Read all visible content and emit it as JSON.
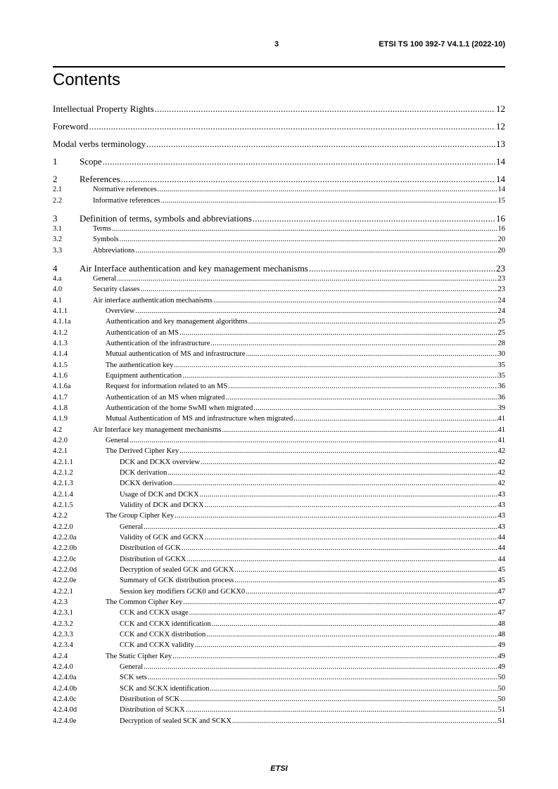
{
  "header": {
    "page_number": "3",
    "document_id": "ETSI TS 100 392-7 V4.1.1 (2022-10)"
  },
  "title": "Contents",
  "toc": [
    {
      "num": "",
      "title": "Intellectual Property Rights",
      "page": "12",
      "level": 0
    },
    {
      "num": "",
      "title": "Foreword",
      "page": "12",
      "level": 0
    },
    {
      "num": "",
      "title": "Modal verbs terminology",
      "page": "13",
      "level": 0
    },
    {
      "num": "1",
      "title": "Scope",
      "page": "14",
      "level": 0
    },
    {
      "num": "2",
      "title": "References",
      "page": "14",
      "level": 0
    },
    {
      "num": "2.1",
      "title": "Normative references",
      "page": "14",
      "level": 1
    },
    {
      "num": "2.2",
      "title": "Informative references",
      "page": "15",
      "level": 1
    },
    {
      "num": "3",
      "title": "Definition of terms, symbols and abbreviations",
      "page": "16",
      "level": 0
    },
    {
      "num": "3.1",
      "title": "Terms",
      "page": "16",
      "level": 1
    },
    {
      "num": "3.2",
      "title": "Symbols",
      "page": "20",
      "level": 1
    },
    {
      "num": "3.3",
      "title": "Abbreviations",
      "page": "20",
      "level": 1
    },
    {
      "num": "4",
      "title": "Air Interface authentication and key management mechanisms",
      "page": "23",
      "level": 0
    },
    {
      "num": "4.a",
      "title": "General",
      "page": "23",
      "level": 1
    },
    {
      "num": "4.0",
      "title": "Security classes",
      "page": "23",
      "level": 1
    },
    {
      "num": "4.1",
      "title": "Air interface authentication mechanisms",
      "page": "24",
      "level": 1
    },
    {
      "num": "4.1.1",
      "title": "Overview",
      "page": "24",
      "level": 2
    },
    {
      "num": "4.1.1a",
      "title": "Authentication and key management algorithms",
      "page": "25",
      "level": 2
    },
    {
      "num": "4.1.2",
      "title": "Authentication of an MS",
      "page": "25",
      "level": 2
    },
    {
      "num": "4.1.3",
      "title": "Authentication of the infrastructure",
      "page": "28",
      "level": 2
    },
    {
      "num": "4.1.4",
      "title": "Mutual authentication of MS and infrastructure",
      "page": "30",
      "level": 2
    },
    {
      "num": "4.1.5",
      "title": "The authentication key",
      "page": "35",
      "level": 2
    },
    {
      "num": "4.1.6",
      "title": "Equipment authentication",
      "page": "35",
      "level": 2
    },
    {
      "num": "4.1.6a",
      "title": "Request for information related to an MS",
      "page": "36",
      "level": 2
    },
    {
      "num": "4.1.7",
      "title": "Authentication of an MS when migrated",
      "page": "36",
      "level": 2
    },
    {
      "num": "4.1.8",
      "title": "Authentication of the home SwMI when migrated",
      "page": "39",
      "level": 2
    },
    {
      "num": "4.1.9",
      "title": "Mutual Authentication of MS and infrastructure when migrated",
      "page": "41",
      "level": 2
    },
    {
      "num": "4.2",
      "title": "Air Interface key management mechanisms",
      "page": "41",
      "level": 1
    },
    {
      "num": "4.2.0",
      "title": "General",
      "page": "41",
      "level": 2
    },
    {
      "num": "4.2.1",
      "title": "The Derived Cipher Key",
      "page": "42",
      "level": 2
    },
    {
      "num": "4.2.1.1",
      "title": "DCK and DCKX overview",
      "page": "42",
      "level": 3
    },
    {
      "num": "4.2.1.2",
      "title": "DCK derivation",
      "page": "42",
      "level": 3
    },
    {
      "num": "4.2.1.3",
      "title": "DCKX derivation",
      "page": "42",
      "level": 3
    },
    {
      "num": "4.2.1.4",
      "title": "Usage of DCK and DCKX",
      "page": "43",
      "level": 3
    },
    {
      "num": "4.2.1.5",
      "title": "Validity of DCK and DCKX",
      "page": "43",
      "level": 3
    },
    {
      "num": "4.2.2",
      "title": "The Group Cipher Key",
      "page": "43",
      "level": 2
    },
    {
      "num": "4.2.2.0",
      "title": "General",
      "page": "43",
      "level": 3
    },
    {
      "num": "4.2.2.0a",
      "title": "Validity of GCK and GCKX",
      "page": "44",
      "level": 3
    },
    {
      "num": "4.2.2.0b",
      "title": "Distribution of GCK",
      "page": "44",
      "level": 3
    },
    {
      "num": "4.2.2.0c",
      "title": "Distribution of GCKX",
      "page": "44",
      "level": 3
    },
    {
      "num": "4.2.2.0d",
      "title": "Decryption of sealed GCK and GCKX",
      "page": "45",
      "level": 3
    },
    {
      "num": "4.2.2.0e",
      "title": "Summary of GCK distribution process",
      "page": "45",
      "level": 3
    },
    {
      "num": "4.2.2.1",
      "title": "Session key modifiers GCK0 and GCKX0",
      "page": "47",
      "level": 3
    },
    {
      "num": "4.2.3",
      "title": "The Common Cipher Key",
      "page": "47",
      "level": 2
    },
    {
      "num": "4.2.3.1",
      "title": "CCK and CCKX usage",
      "page": "47",
      "level": 3
    },
    {
      "num": "4.2.3.2",
      "title": "CCK and CCKX identification",
      "page": "48",
      "level": 3
    },
    {
      "num": "4.2.3.3",
      "title": "CCK and CCKX distribution",
      "page": "48",
      "level": 3
    },
    {
      "num": "4.2.3.4",
      "title": "CCK and CCKX validity",
      "page": "49",
      "level": 3
    },
    {
      "num": "4.2.4",
      "title": "The Static Cipher Key",
      "page": "49",
      "level": 2
    },
    {
      "num": "4.2.4.0",
      "title": "General",
      "page": "49",
      "level": 3
    },
    {
      "num": "4.2.4.0a",
      "title": "SCK sets",
      "page": "50",
      "level": 3
    },
    {
      "num": "4.2.4.0b",
      "title": "SCK and SCKX identification",
      "page": "50",
      "level": 3
    },
    {
      "num": "4.2.4.0c",
      "title": "Distribution of SCK",
      "page": "50",
      "level": 3
    },
    {
      "num": "4.2.4.0d",
      "title": "Distribution of SCKX",
      "page": "51",
      "level": 3
    },
    {
      "num": "4.2.4.0e",
      "title": "Decryption of sealed SCK and SCKX",
      "page": "51",
      "level": 3
    }
  ],
  "footer": "ETSI"
}
